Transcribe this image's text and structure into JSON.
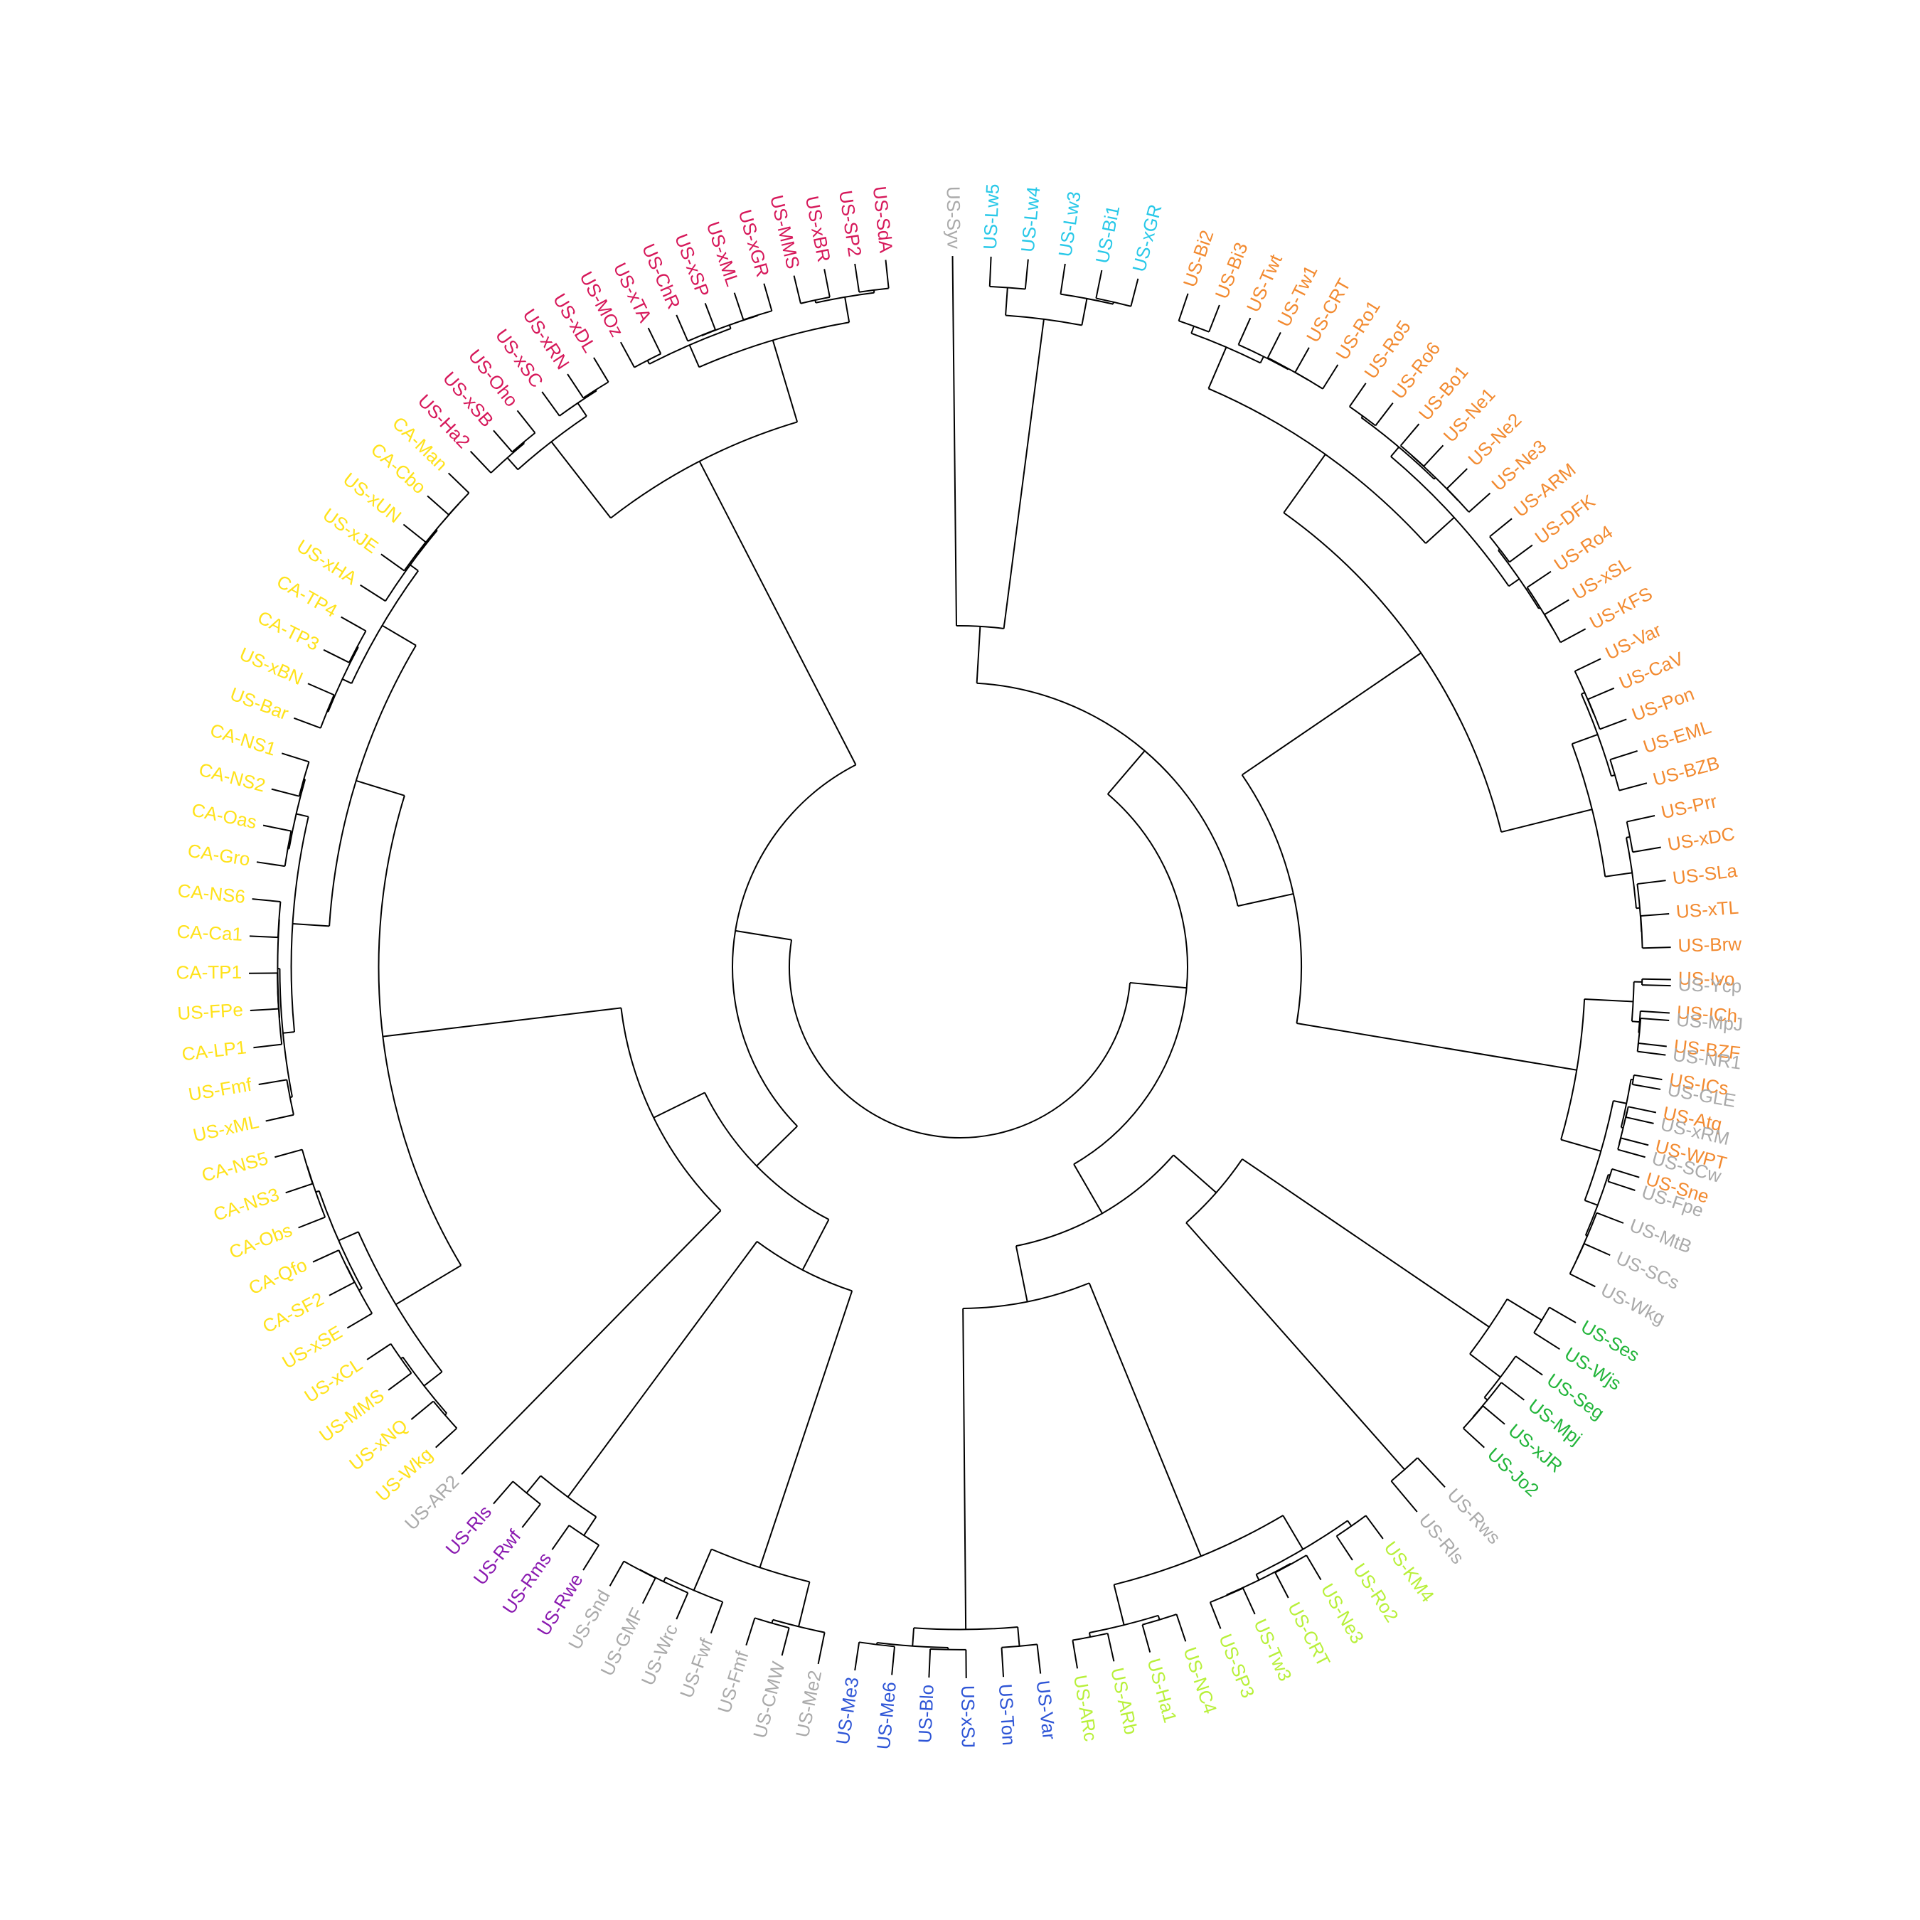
{
  "colors": {
    "red": "#d6185a",
    "yellow": "#ffe21a",
    "purple": "#8a1ab0",
    "gray": "#aaaaaa",
    "blue": "#2e55d6",
    "lime": "#b8f03a",
    "green": "#22b53a",
    "orange": "#f28a30",
    "cyan": "#28c8e8"
  },
  "label_ring": [
    {
      "start": -95,
      "end": -89,
      "color": "gray"
    },
    {
      "start": -89,
      "end": -73,
      "color": "cyan"
    },
    {
      "start": -73,
      "end": 0,
      "color": "orange"
    },
    {
      "start": 0,
      "end": 29,
      "color": "gray"
    },
    {
      "start": 29,
      "end": 45,
      "color": "green"
    },
    {
      "start": 45,
      "end": 52,
      "color": "gray"
    },
    {
      "start": 52,
      "end": 82,
      "color": "lime"
    },
    {
      "start": 82,
      "end": 99,
      "color": "blue"
    },
    {
      "start": 99,
      "end": 120,
      "color": "gray"
    },
    {
      "start": 120,
      "end": 133,
      "color": "purple"
    },
    {
      "start": 133,
      "end": 136,
      "color": "gray"
    },
    {
      "start": 136,
      "end": 225,
      "color": "yellow"
    },
    {
      "start": 225,
      "end": 265,
      "color": "red"
    }
  ],
  "leaves": [
    {
      "angle": -90.6,
      "label": "US-Syv",
      "color": "gray"
    },
    {
      "angle": -87.5,
      "label": "US-Lw5",
      "color": "cyan"
    },
    {
      "angle": -84.5,
      "label": "US-Lw4",
      "color": "cyan"
    },
    {
      "angle": -81.5,
      "label": "US-Lw3",
      "color": "cyan"
    },
    {
      "angle": -78.5,
      "label": "US-Bi1",
      "color": "cyan"
    },
    {
      "angle": -75.5,
      "label": "US-xGR",
      "color": "cyan"
    },
    {
      "angle": -71.3,
      "label": "US-Bi2",
      "color": "orange"
    },
    {
      "angle": -68.6,
      "label": "US-Bi3",
      "color": "orange"
    },
    {
      "angle": -65.9,
      "label": "US-Twt",
      "color": "orange"
    },
    {
      "angle": -63.2,
      "label": "US-Tw1",
      "color": "orange"
    },
    {
      "angle": -60.6,
      "label": "US-CRT",
      "color": "orange"
    },
    {
      "angle": -57.9,
      "label": "US-Ro1",
      "color": "orange"
    },
    {
      "angle": -55.2,
      "label": "US-Ro5",
      "color": "orange"
    },
    {
      "angle": -52.5,
      "label": "US-Ro6",
      "color": "orange"
    },
    {
      "angle": -49.8,
      "label": "US-Bo1",
      "color": "orange"
    },
    {
      "angle": -47.2,
      "label": "US-Ne1",
      "color": "orange"
    },
    {
      "angle": -44.5,
      "label": "US-Ne2",
      "color": "orange"
    },
    {
      "angle": -41.8,
      "label": "US-Ne3",
      "color": "orange"
    },
    {
      "angle": -39.1,
      "label": "US-ARM",
      "color": "orange"
    },
    {
      "angle": -36.4,
      "label": "US-DFK",
      "color": "orange"
    },
    {
      "angle": -33.8,
      "label": "US-Ro4",
      "color": "orange"
    },
    {
      "angle": -31.1,
      "label": "US-xSL",
      "color": "orange"
    },
    {
      "angle": -28.4,
      "label": "US-KFS",
      "color": "orange"
    },
    {
      "angle": -25.7,
      "label": "US-Var",
      "color": "orange"
    },
    {
      "angle": -23.1,
      "label": "US-CaV",
      "color": "orange"
    },
    {
      "angle": -20.4,
      "label": "US-Pon",
      "color": "orange"
    },
    {
      "angle": -17.7,
      "label": "US-EML",
      "color": "orange"
    },
    {
      "angle": -15.0,
      "label": "US-BZB",
      "color": "orange"
    },
    {
      "angle": -12.3,
      "label": "US-Prr",
      "color": "orange"
    },
    {
      "angle": -9.7,
      "label": "US-xDC",
      "color": "orange"
    },
    {
      "angle": -7.0,
      "label": "US-SLa",
      "color": "orange"
    },
    {
      "angle": -4.3,
      "label": "US-xTL",
      "color": "orange"
    },
    {
      "angle": -1.6,
      "label": "US-Brw",
      "color": "orange"
    },
    {
      "angle": 1.0,
      "label": "US-Ivo",
      "color": "orange"
    },
    {
      "angle": 3.7,
      "label": "US-ICh",
      "color": "orange"
    },
    {
      "angle": 6.4,
      "label": "US-BZF",
      "color": "orange"
    },
    {
      "angle": 9.1,
      "label": "US-ICs",
      "color": "orange"
    },
    {
      "angle": 11.8,
      "label": "US-Atq",
      "color": "orange"
    },
    {
      "angle": 14.5,
      "label": "US-WPT",
      "color": "orange"
    },
    {
      "angle": 17.2,
      "label": "US-Sne",
      "color": "orange"
    },
    {
      "angle": 1.5,
      "label": "US-Ycp",
      "color": "gray"
    },
    {
      "angle": 4.3,
      "label": "US-MpJ",
      "color": "gray"
    },
    {
      "angle": 7.1,
      "label": "US-NR1",
      "color": "gray"
    },
    {
      "angle": 9.9,
      "label": "US-GLE",
      "color": "gray"
    },
    {
      "angle": 12.7,
      "label": "US-xRM",
      "color": "gray"
    },
    {
      "angle": 15.5,
      "label": "US-SCw",
      "color": "gray"
    },
    {
      "angle": 18.3,
      "label": "US-Fpe",
      "color": "gray"
    },
    {
      "angle": 21.1,
      "label": "US-MtB",
      "color": "gray"
    },
    {
      "angle": 23.9,
      "label": "US-SCs",
      "color": "gray"
    },
    {
      "angle": 26.7,
      "label": "US-Wkg",
      "color": "gray"
    },
    {
      "angle": 30.0,
      "label": "US-Ses",
      "color": "green"
    },
    {
      "angle": 32.5,
      "label": "US-Wjs",
      "color": "green"
    },
    {
      "angle": 35.0,
      "label": "US-Seg",
      "color": "green"
    },
    {
      "angle": 37.5,
      "label": "US-Mpj",
      "color": "green"
    },
    {
      "angle": 40.0,
      "label": "US-xJR",
      "color": "green"
    },
    {
      "angle": 42.5,
      "label": "US-Jo2",
      "color": "green"
    },
    {
      "angle": 47.0,
      "label": "US-Rws",
      "color": "gray"
    },
    {
      "angle": 50.0,
      "label": "US-Rls",
      "color": "gray"
    },
    {
      "angle": 53.5,
      "label": "US-KM4",
      "color": "lime"
    },
    {
      "angle": 56.5,
      "label": "US-Ro2",
      "color": "lime"
    },
    {
      "angle": 59.5,
      "label": "US-Ne3",
      "color": "lime"
    },
    {
      "angle": 62.5,
      "label": "US-CRT",
      "color": "lime"
    },
    {
      "angle": 65.5,
      "label": "US-Tw3",
      "color": "lime"
    },
    {
      "angle": 68.5,
      "label": "US-SP3",
      "color": "lime"
    },
    {
      "angle": 71.5,
      "label": "US-NC4",
      "color": "lime"
    },
    {
      "angle": 74.5,
      "label": "US-Ha1",
      "color": "lime"
    },
    {
      "angle": 77.5,
      "label": "US-ARb",
      "color": "lime"
    },
    {
      "angle": 80.5,
      "label": "US-ARc",
      "color": "lime"
    },
    {
      "angle": 83.5,
      "label": "US-Var",
      "color": "blue"
    },
    {
      "angle": 86.5,
      "label": "US-Ton",
      "color": "blue"
    },
    {
      "angle": 89.5,
      "label": "US-xSJ",
      "color": "blue"
    },
    {
      "angle": 92.5,
      "label": "US-Blo",
      "color": "blue"
    },
    {
      "angle": 95.5,
      "label": "US-Me6",
      "color": "blue"
    },
    {
      "angle": 98.5,
      "label": "US-Me3",
      "color": "blue"
    },
    {
      "angle": 101.5,
      "label": "US-Me2",
      "color": "gray"
    },
    {
      "angle": 104.5,
      "label": "US-CMW",
      "color": "gray"
    },
    {
      "angle": 107.5,
      "label": "US-Fmf",
      "color": "gray"
    },
    {
      "angle": 110.5,
      "label": "US-Fwf",
      "color": "gray"
    },
    {
      "angle": 113.5,
      "label": "US-Wrc",
      "color": "gray"
    },
    {
      "angle": 116.5,
      "label": "US-GMF",
      "color": "gray"
    },
    {
      "angle": 119.5,
      "label": "US-Snd",
      "color": "gray"
    },
    {
      "angle": 122.0,
      "label": "US-Rwe",
      "color": "purple"
    },
    {
      "angle": 125.0,
      "label": "US-Rms",
      "color": "purple"
    },
    {
      "angle": 128.0,
      "label": "US-Rwf",
      "color": "purple"
    },
    {
      "angle": 131.0,
      "label": "US-Rls",
      "color": "purple"
    },
    {
      "angle": 134.5,
      "label": "US-AR2",
      "color": "gray"
    },
    {
      "angle": 137.5,
      "label": "US-Wkg",
      "color": "yellow"
    },
    {
      "angle": 140.5,
      "label": "US-xNQ",
      "color": "yellow"
    },
    {
      "angle": 143.5,
      "label": "US-MMS",
      "color": "yellow"
    },
    {
      "angle": 146.5,
      "label": "US-xCL",
      "color": "yellow"
    },
    {
      "angle": 149.5,
      "label": "US-xSE",
      "color": "yellow"
    },
    {
      "angle": 152.5,
      "label": "CA-SF2",
      "color": "yellow"
    },
    {
      "angle": 155.5,
      "label": "CA-Qfo",
      "color": "yellow"
    },
    {
      "angle": 158.5,
      "label": "CA-Obs",
      "color": "yellow"
    },
    {
      "angle": 161.5,
      "label": "CA-NS3",
      "color": "yellow"
    },
    {
      "angle": 164.5,
      "label": "CA-NS5",
      "color": "yellow"
    },
    {
      "angle": 167.5,
      "label": "US-xML",
      "color": "yellow"
    },
    {
      "angle": 170.5,
      "label": "US-Fmf",
      "color": "yellow"
    },
    {
      "angle": 173.5,
      "label": "CA-LP1",
      "color": "yellow"
    },
    {
      "angle": 176.5,
      "label": "US-FPe",
      "color": "yellow"
    },
    {
      "angle": 179.5,
      "label": "CA-TP1",
      "color": "yellow"
    },
    {
      "angle": 182.5,
      "label": "CA-Ca1",
      "color": "yellow"
    },
    {
      "angle": 185.5,
      "label": "CA-NS6",
      "color": "yellow"
    },
    {
      "angle": 188.5,
      "label": "CA-Gro",
      "color": "yellow"
    },
    {
      "angle": 191.5,
      "label": "CA-Oas",
      "color": "yellow"
    },
    {
      "angle": 194.5,
      "label": "CA-NS2",
      "color": "yellow"
    },
    {
      "angle": 197.5,
      "label": "CA-NS1",
      "color": "yellow"
    },
    {
      "angle": 200.5,
      "label": "US-Bar",
      "color": "yellow"
    },
    {
      "angle": 203.5,
      "label": "US-xBN",
      "color": "yellow"
    },
    {
      "angle": 206.5,
      "label": "CA-TP3",
      "color": "yellow"
    },
    {
      "angle": 209.5,
      "label": "CA-TP4",
      "color": "yellow"
    },
    {
      "angle": 212.5,
      "label": "US-xHA",
      "color": "yellow"
    },
    {
      "angle": 215.5,
      "label": "US-xJE",
      "color": "yellow"
    },
    {
      "angle": 218.5,
      "label": "US-xUN",
      "color": "yellow"
    },
    {
      "angle": 221.5,
      "label": "CA-Cbo",
      "color": "yellow"
    },
    {
      "angle": 224.0,
      "label": "CA-Man",
      "color": "yellow"
    },
    {
      "angle": 226.5,
      "label": "US-Ha2",
      "color": "red"
    },
    {
      "angle": 229.0,
      "label": "US-xSB",
      "color": "red"
    },
    {
      "angle": 231.5,
      "label": "US-Oho",
      "color": "red"
    },
    {
      "angle": 234.0,
      "label": "US-xSC",
      "color": "red"
    },
    {
      "angle": 236.5,
      "label": "US-xRN",
      "color": "red"
    },
    {
      "angle": 239.0,
      "label": "US-xDL",
      "color": "red"
    },
    {
      "angle": 241.5,
      "label": "US-MOz",
      "color": "red"
    },
    {
      "angle": 244.0,
      "label": "US-xTA",
      "color": "red"
    },
    {
      "angle": 246.5,
      "label": "US-ChR",
      "color": "red"
    },
    {
      "angle": 249.0,
      "label": "US-xSP",
      "color": "red"
    },
    {
      "angle": 251.5,
      "label": "US-xML",
      "color": "red"
    },
    {
      "angle": 254.0,
      "label": "US-xGR",
      "color": "red"
    },
    {
      "angle": 256.5,
      "label": "US-MMS",
      "color": "red"
    },
    {
      "angle": 259.0,
      "label": "US-xBR",
      "color": "red"
    },
    {
      "angle": 261.5,
      "label": "US-SP2",
      "color": "red"
    },
    {
      "angle": 264.0,
      "label": "US-SdA",
      "color": "red"
    }
  ]
}
